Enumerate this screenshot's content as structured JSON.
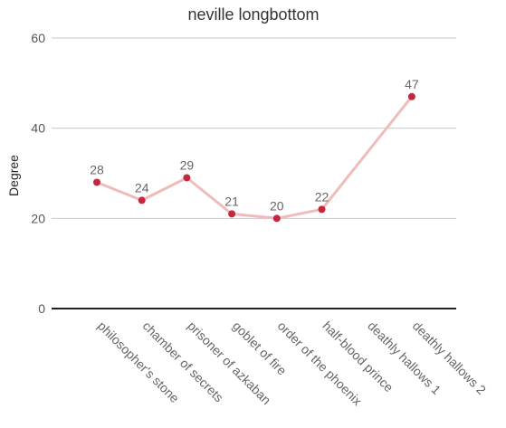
{
  "chart_data": {
    "type": "line",
    "title": "neville longbottom",
    "xlabel": "",
    "ylabel": "Degree",
    "categories": [
      "philosopher's stone",
      "chamber of secrets",
      "prisoner of azkaban",
      "goblet of fire",
      "order of the phoenix",
      "half-blood prince",
      "deathly hallows 1",
      "deathly hallows 2"
    ],
    "series": [
      {
        "values": [
          28,
          24,
          29,
          21,
          20,
          22,
          null,
          47
        ]
      }
    ],
    "data_labels": [
      "28",
      "24",
      "29",
      "21",
      "20",
      "22",
      "",
      "47"
    ],
    "ylim": [
      0,
      60
    ],
    "yticks": [
      0,
      20,
      40,
      60
    ],
    "grid": true,
    "legend": "none",
    "colors": {
      "line": "#efbcbc",
      "point": "#c5283d"
    }
  }
}
